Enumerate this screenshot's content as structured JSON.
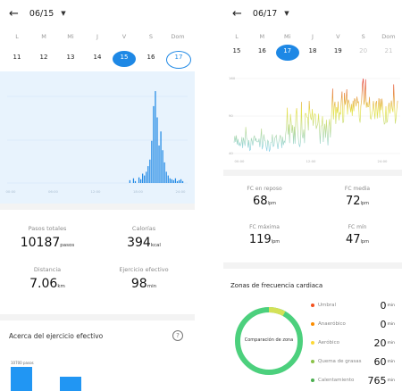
{
  "left": {
    "header": {
      "date": "06/15"
    },
    "weekdays": [
      "L",
      "M",
      "Mi",
      "J",
      "V",
      "S",
      "Dom"
    ],
    "dates": [
      "11",
      "12",
      "13",
      "14",
      "15",
      "16",
      "17"
    ],
    "steps_chart": {
      "x_ticks": [
        "00:00",
        "06:00",
        "12:00",
        "18:00",
        "24:00"
      ],
      "bars": [
        0,
        0,
        0,
        0,
        0,
        0,
        0,
        0,
        0,
        0,
        0,
        0,
        0,
        0,
        0,
        0,
        0,
        0,
        0,
        0,
        0,
        0,
        0,
        0,
        0,
        0,
        0,
        0,
        0,
        0,
        0,
        0,
        0,
        0,
        0,
        0,
        0,
        0,
        0,
        0,
        0,
        0,
        0,
        0,
        0,
        0,
        0,
        0,
        0,
        0,
        0,
        0,
        0,
        0,
        0,
        0,
        0,
        0,
        0,
        0,
        0,
        0,
        0,
        0,
        0,
        0,
        0.03,
        0,
        0.05,
        0.02,
        0,
        0.06,
        0.04,
        0.1,
        0.08,
        0.12,
        0.18,
        0.25,
        0.45,
        0.82,
        0.98,
        0.7,
        0.4,
        0.55,
        0.35,
        0.22,
        0.12,
        0.08,
        0.05,
        0.04,
        0.03,
        0.05,
        0.02,
        0.03,
        0.04,
        0.02
      ]
    },
    "stats": {
      "steps": {
        "label": "Pasos totales",
        "value": "10187",
        "unit": "pasos"
      },
      "calories": {
        "label": "Calorías",
        "value": "394",
        "unit": "kcal"
      },
      "distance": {
        "label": "Distancia",
        "value": "7.06",
        "unit": "km"
      },
      "effective": {
        "label": "Ejercicio efectivo",
        "value": "98",
        "unit": "min"
      }
    },
    "about": {
      "title": "Acerca del ejercicio efectivo",
      "help": "?",
      "bar_label": "10700 pasos"
    }
  },
  "right": {
    "header": {
      "date": "06/17"
    },
    "weekdays": [
      "L",
      "M",
      "Mi",
      "J",
      "V",
      "S",
      "Dom"
    ],
    "dates": [
      "15",
      "16",
      "17",
      "18",
      "19",
      "20",
      "21"
    ],
    "hr_chart": {
      "y_ticks": [
        "160",
        "90",
        "40"
      ],
      "x_ticks": [
        "00:00",
        "12:00",
        "24:00"
      ],
      "colors": {
        "low": "#8ad2ee",
        "mid": "#e5e24a",
        "high": "#e53935"
      }
    },
    "stats": {
      "rest": {
        "label": "FC en reposo",
        "value": "68",
        "unit": "lpm"
      },
      "avg": {
        "label": "FC media",
        "value": "72",
        "unit": "lpm"
      },
      "max": {
        "label": "FC máxima",
        "value": "119",
        "unit": "lpm"
      },
      "min": {
        "label": "FC mín",
        "value": "47",
        "unit": "lpm"
      }
    },
    "zones": {
      "title": "Zonas de frecuencia cardiaca",
      "ring_label": "Comparación de zona",
      "items": [
        {
          "name": "Umbral",
          "value": "0",
          "unit": "min",
          "color": "#f4511e"
        },
        {
          "name": "Anaeróbico",
          "value": "0",
          "unit": "min",
          "color": "#fb8c00"
        },
        {
          "name": "Aeróbico",
          "value": "20",
          "unit": "min",
          "color": "#fdd835"
        },
        {
          "name": "Quema de grasas",
          "value": "60",
          "unit": "min",
          "color": "#8bc34a"
        },
        {
          "name": "Calentamiento",
          "value": "765",
          "unit": "min",
          "color": "#4caf50"
        }
      ]
    }
  }
}
